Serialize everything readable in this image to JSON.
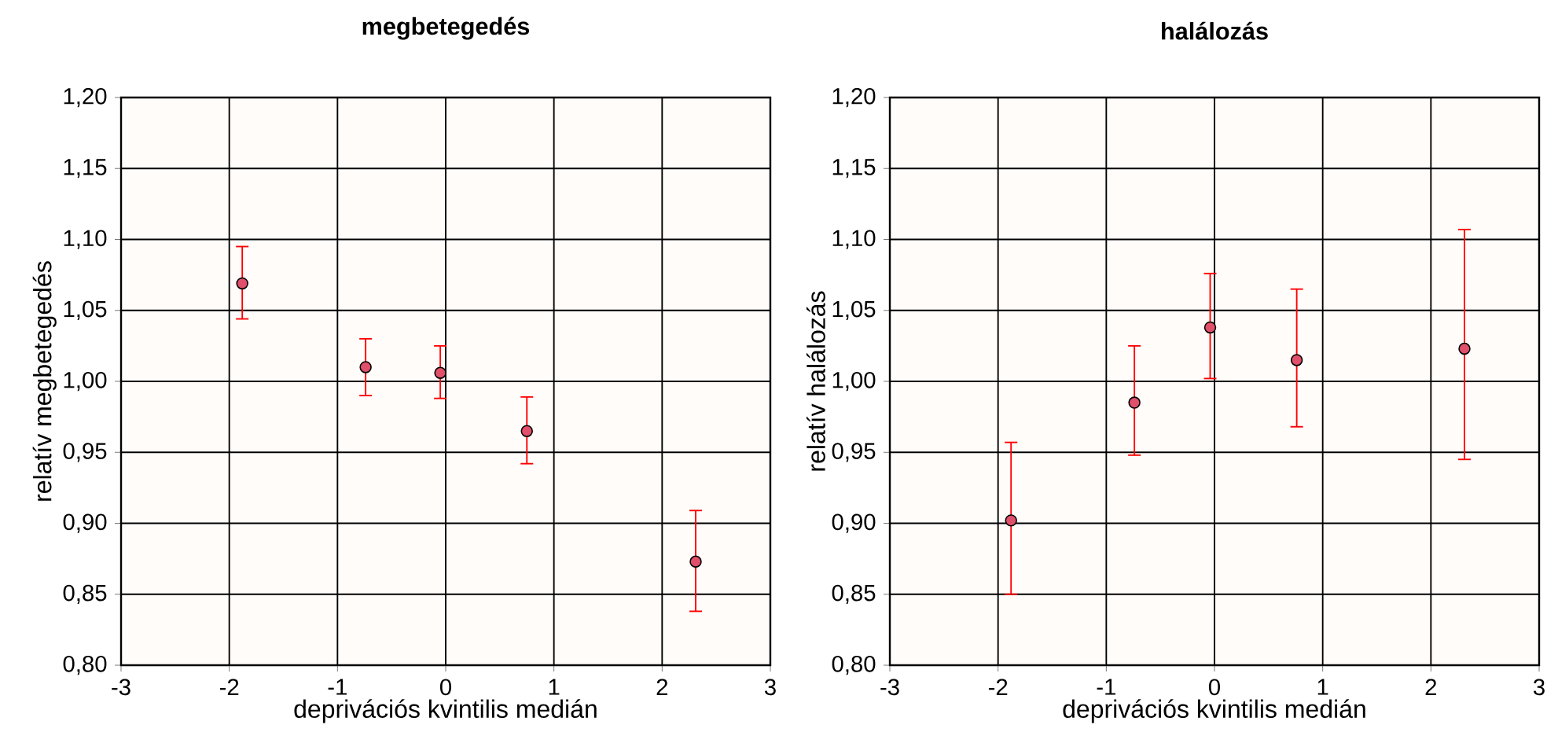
{
  "chart_data": [
    {
      "type": "scatter",
      "title": "megbetegedés",
      "xlabel": "deprivációs kvintilis medián",
      "ylabel": "relatív megbetegedés",
      "xlim": [
        -3,
        3
      ],
      "xticks": [
        -3,
        -2,
        -1,
        0,
        1,
        2,
        3
      ],
      "ylim": [
        0.8,
        1.2
      ],
      "yticks": [
        {
          "value": 0.8,
          "label": "0,80"
        },
        {
          "value": 0.85,
          "label": "0,85"
        },
        {
          "value": 0.9,
          "label": "0,90"
        },
        {
          "value": 0.95,
          "label": "0,95"
        },
        {
          "value": 1.0,
          "label": "1,00"
        },
        {
          "value": 1.05,
          "label": "1,05"
        },
        {
          "value": 1.1,
          "label": "1,10"
        },
        {
          "value": 1.15,
          "label": "1,15"
        },
        {
          "value": 1.2,
          "label": "1,20"
        }
      ],
      "grid": true,
      "marker": "circle",
      "series": [
        {
          "color": "#e0506a",
          "x": [
            -1.88,
            -0.74,
            -0.05,
            0.75,
            2.31
          ],
          "values": [
            1.069,
            1.01,
            1.006,
            0.965,
            0.873
          ],
          "errors": [
            [
              1.044,
              1.095
            ],
            [
              0.99,
              1.03
            ],
            [
              0.988,
              1.025
            ],
            [
              0.942,
              0.989
            ],
            [
              0.838,
              0.909
            ]
          ]
        }
      ]
    },
    {
      "type": "scatter",
      "title": "halálozás",
      "xlabel": "deprivációs kvintilis medián",
      "ylabel": "relatív halálozás",
      "xlim": [
        -3,
        3
      ],
      "xticks": [
        -3,
        -2,
        -1,
        0,
        1,
        2,
        3
      ],
      "ylim": [
        0.8,
        1.2
      ],
      "yticks": [
        {
          "value": 0.8,
          "label": "0,80"
        },
        {
          "value": 0.85,
          "label": "0,85"
        },
        {
          "value": 0.9,
          "label": "0,90"
        },
        {
          "value": 0.95,
          "label": "0,95"
        },
        {
          "value": 1.0,
          "label": "1,00"
        },
        {
          "value": 1.05,
          "label": "1,05"
        },
        {
          "value": 1.1,
          "label": "1,10"
        },
        {
          "value": 1.15,
          "label": "1,15"
        },
        {
          "value": 1.2,
          "label": "1,20"
        }
      ],
      "grid": true,
      "marker": "circle",
      "series": [
        {
          "color": "#e0506a",
          "x": [
            -1.88,
            -0.74,
            -0.04,
            0.76,
            2.31
          ],
          "values": [
            0.902,
            0.985,
            1.038,
            1.015,
            1.023
          ],
          "errors": [
            [
              0.85,
              0.957
            ],
            [
              0.948,
              1.025
            ],
            [
              1.002,
              1.076
            ],
            [
              0.968,
              1.065
            ],
            [
              0.945,
              1.107
            ]
          ]
        }
      ]
    }
  ]
}
